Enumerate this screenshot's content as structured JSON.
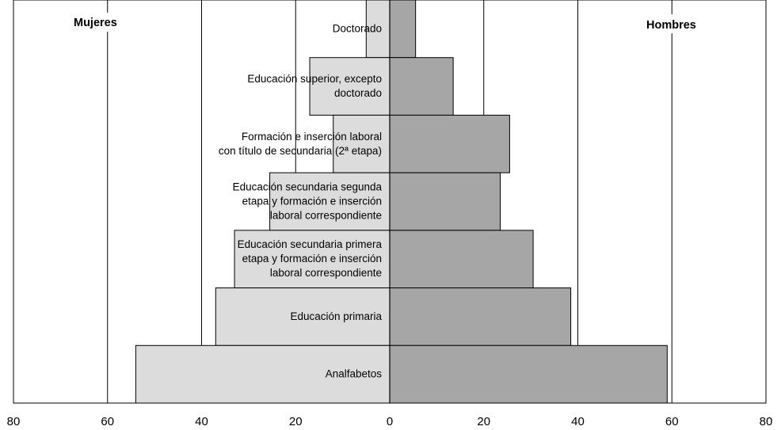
{
  "chart_data": {
    "type": "bar",
    "orientation": "horizontal",
    "layout": "population-pyramid",
    "categories": [
      [
        "Doctorado"
      ],
      [
        "Educación superior, excepto",
        "doctorado"
      ],
      [
        "Formación e inserción laboral",
        "con título de secundaria (2ª etapa)"
      ],
      [
        "Educación secundaria segunda",
        "etapa y formación e inserción",
        "laboral correspondiente"
      ],
      [
        "Educación secundaria primera",
        "etapa y formación e inserción",
        "laboral correspondiente"
      ],
      [
        "Educación primaria"
      ],
      [
        "Analfabetos"
      ]
    ],
    "series": [
      {
        "name": "Mujeres",
        "side": "left",
        "color": "#dcdcdc",
        "values": [
          5,
          17,
          12,
          25.5,
          33,
          37,
          54
        ]
      },
      {
        "name": "Hombres",
        "side": "right",
        "color": "#a6a6a6",
        "values": [
          5.5,
          13.5,
          25.5,
          23.5,
          30.5,
          38.5,
          59
        ]
      }
    ],
    "xlim": [
      -80,
      80
    ],
    "xticks": [
      "80",
      "60",
      "40",
      "20",
      "0",
      "20",
      "40",
      "60",
      "80"
    ],
    "grid": true,
    "title": "",
    "xlabel": "",
    "ylabel": ""
  }
}
